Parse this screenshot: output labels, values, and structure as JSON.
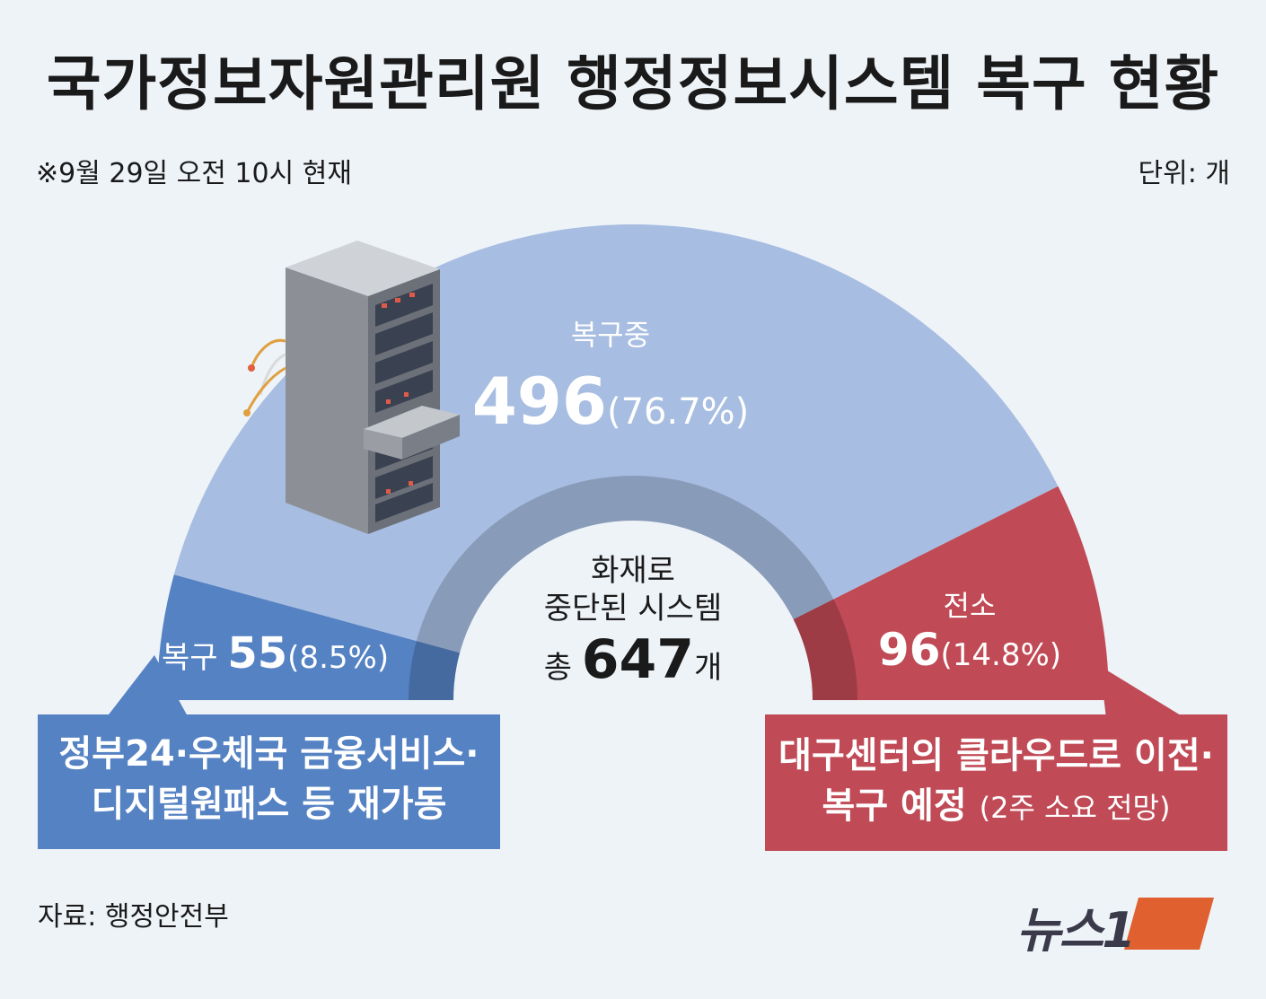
{
  "title": "국가정보자원관리원 행정정보시스템 복구 현황",
  "as_of": "※9월 29일 오전 10시 현재",
  "unit": "단위: 개",
  "source": "자료: 행정안전부",
  "logo_text": "뉴스1",
  "colors": {
    "in_progress": "#a7bde1",
    "restored": "#5582c3",
    "transfer": "#c04a55",
    "inner_ring": "#8aa4c6",
    "background": "#eef3f8"
  },
  "center": {
    "line1": "화재로",
    "line2": "중단된 시스템",
    "total_prefix": "총",
    "total_value": "647",
    "total_unit": "개"
  },
  "callouts": {
    "restored_line1": "정부24·우체국 금융서비스·",
    "restored_line2": "디지털원패스 등 재가동",
    "transfer_line1": "대구센터의 클라우드로 이전·",
    "transfer_line2_main": "복구 예정",
    "transfer_line2_note": "(2주 소요 전망)"
  },
  "chart_data": {
    "type": "pie",
    "variant": "half-donut",
    "total": 647,
    "unit": "개",
    "slices": [
      {
        "label": "복구",
        "value": 55,
        "percent_label": "(8.5%)",
        "percent": 8.5
      },
      {
        "label": "복구중",
        "value": 496,
        "percent_label": "(76.7%)",
        "percent": 76.7
      },
      {
        "label": "전소",
        "value": 96,
        "percent_label": "(14.8%)",
        "percent": 14.8
      }
    ]
  }
}
